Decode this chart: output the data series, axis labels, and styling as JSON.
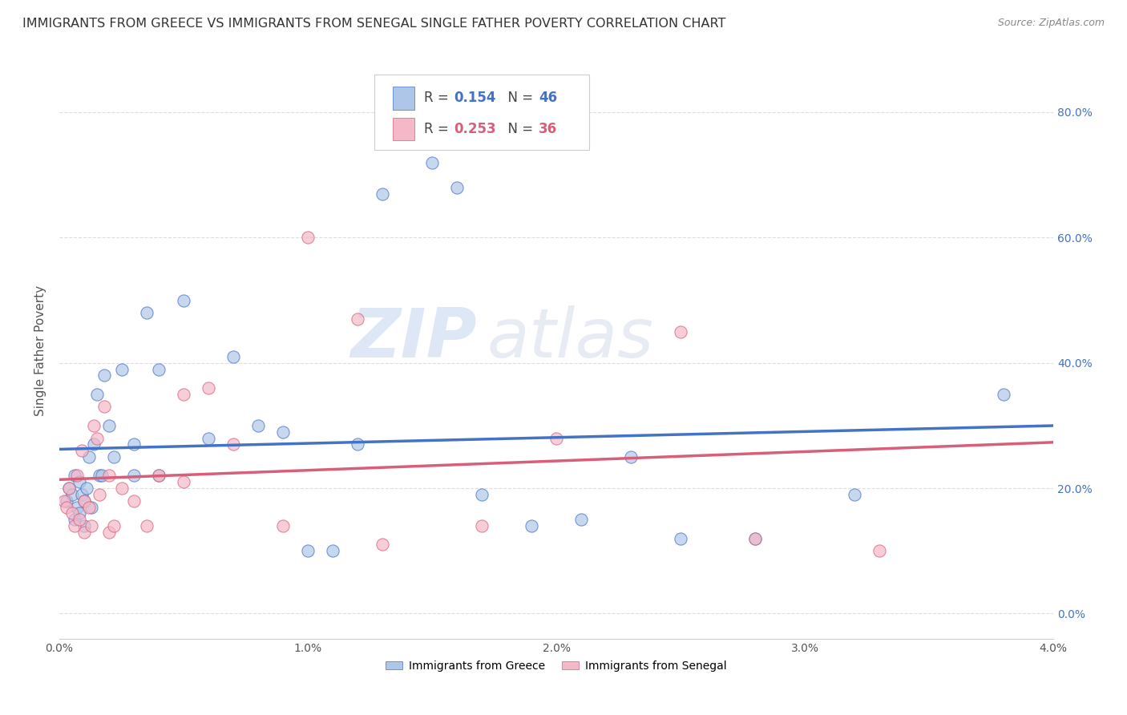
{
  "title": "IMMIGRANTS FROM GREECE VS IMMIGRANTS FROM SENEGAL SINGLE FATHER POVERTY CORRELATION CHART",
  "source": "Source: ZipAtlas.com",
  "ylabel": "Single Father Poverty",
  "legend_label1": "Immigrants from Greece",
  "legend_label2": "Immigrants from Senegal",
  "color_greece": "#aec6e8",
  "color_senegal": "#f4b8c8",
  "color_greece_line": "#4472c4",
  "color_senegal_line": "#d75f7a",
  "watermark_zip": "ZIP",
  "watermark_atlas": "atlas",
  "greece_x": [
    0.0003,
    0.0004,
    0.0005,
    0.0006,
    0.0006,
    0.0007,
    0.0008,
    0.0008,
    0.0009,
    0.001,
    0.001,
    0.0011,
    0.0012,
    0.0013,
    0.0014,
    0.0015,
    0.0016,
    0.0017,
    0.0018,
    0.002,
    0.0022,
    0.0025,
    0.003,
    0.003,
    0.0035,
    0.004,
    0.004,
    0.005,
    0.006,
    0.007,
    0.008,
    0.009,
    0.01,
    0.011,
    0.012,
    0.013,
    0.015,
    0.016,
    0.017,
    0.019,
    0.021,
    0.023,
    0.025,
    0.028,
    0.032,
    0.038
  ],
  "greece_y": [
    0.18,
    0.2,
    0.19,
    0.22,
    0.15,
    0.17,
    0.21,
    0.16,
    0.19,
    0.18,
    0.14,
    0.2,
    0.25,
    0.17,
    0.27,
    0.35,
    0.22,
    0.22,
    0.38,
    0.3,
    0.25,
    0.39,
    0.27,
    0.22,
    0.48,
    0.39,
    0.22,
    0.5,
    0.28,
    0.41,
    0.3,
    0.29,
    0.1,
    0.1,
    0.27,
    0.67,
    0.72,
    0.68,
    0.19,
    0.14,
    0.15,
    0.25,
    0.12,
    0.12,
    0.19,
    0.35
  ],
  "senegal_x": [
    0.0002,
    0.0003,
    0.0004,
    0.0005,
    0.0006,
    0.0007,
    0.0008,
    0.0009,
    0.001,
    0.001,
    0.0012,
    0.0013,
    0.0014,
    0.0015,
    0.0016,
    0.0018,
    0.002,
    0.002,
    0.0022,
    0.0025,
    0.003,
    0.0035,
    0.004,
    0.005,
    0.005,
    0.006,
    0.007,
    0.009,
    0.01,
    0.012,
    0.013,
    0.017,
    0.02,
    0.025,
    0.028,
    0.033
  ],
  "senegal_y": [
    0.18,
    0.17,
    0.2,
    0.16,
    0.14,
    0.22,
    0.15,
    0.26,
    0.18,
    0.13,
    0.17,
    0.14,
    0.3,
    0.28,
    0.19,
    0.33,
    0.22,
    0.13,
    0.14,
    0.2,
    0.18,
    0.14,
    0.22,
    0.21,
    0.35,
    0.36,
    0.27,
    0.14,
    0.6,
    0.47,
    0.11,
    0.14,
    0.28,
    0.45,
    0.12,
    0.1
  ],
  "xlim": [
    0.0,
    0.04
  ],
  "ylim": [
    -0.04,
    0.88
  ],
  "right_yticks": [
    0.0,
    0.2,
    0.4,
    0.6,
    0.8
  ],
  "right_yticklabels": [
    "0.0%",
    "20.0%",
    "40.0%",
    "60.0%",
    "80.0%"
  ],
  "xticks": [
    0.0,
    0.01,
    0.02,
    0.03,
    0.04
  ],
  "xticklabels": [
    "0.0%",
    "1.0%",
    "2.0%",
    "3.0%",
    "4.0%"
  ],
  "background_color": "#ffffff",
  "title_color": "#333333",
  "title_fontsize": 11.5,
  "axis_color": "#cccccc",
  "grid_color": "#dddddd"
}
